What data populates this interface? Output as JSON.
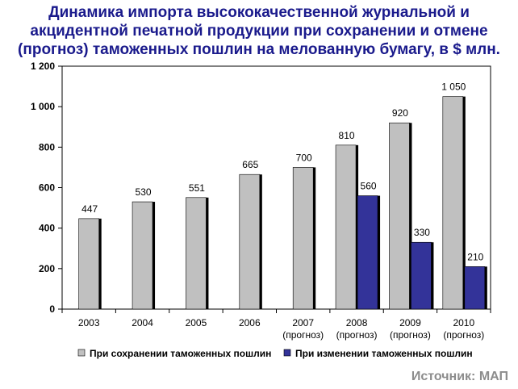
{
  "title": {
    "lines": [
      "Динамика импорта высококачественной журнальной и",
      "акцидентной печатной продукции при сохранении и отмене",
      "(прогноз) таможенных пошлин на мелованную бумагу, в $ млн."
    ]
  },
  "source": "Источник: МАП",
  "colors": {
    "series_gray": "#c0c0c0",
    "series_blue": "#333399",
    "title": "#1a1a8c",
    "source": "#8c8c8c"
  },
  "chart_data": {
    "type": "bar",
    "categories": [
      "2003",
      "2004",
      "2005",
      "2006",
      "2007",
      "2008",
      "2009",
      "2010"
    ],
    "category_sublabels": [
      "",
      "",
      "",
      "",
      "(прогноз)",
      "(прогноз)",
      "(прогноз)",
      "(прогноз)"
    ],
    "series": [
      {
        "name": "При сохранении таможенных пошлин",
        "values": [
          447,
          530,
          551,
          665,
          700,
          810,
          920,
          1050
        ],
        "labels": [
          "447",
          "530",
          "551",
          "665",
          "700",
          "810",
          "920",
          "1 050"
        ],
        "color": "#c0c0c0"
      },
      {
        "name": "При изменении таможенных пошлин",
        "values": [
          null,
          null,
          null,
          null,
          null,
          560,
          330,
          210
        ],
        "labels": [
          "",
          "",
          "",
          "",
          "",
          "560",
          "330",
          "210"
        ],
        "color": "#333399"
      }
    ],
    "ylim": [
      0,
      1200
    ],
    "yticks": [
      0,
      200,
      400,
      600,
      800,
      1000,
      1200
    ],
    "ytick_labels": [
      "0",
      "200",
      "400",
      "600",
      "800",
      "1 000",
      "1 200"
    ],
    "grid": false,
    "legend_position": "bottom"
  }
}
